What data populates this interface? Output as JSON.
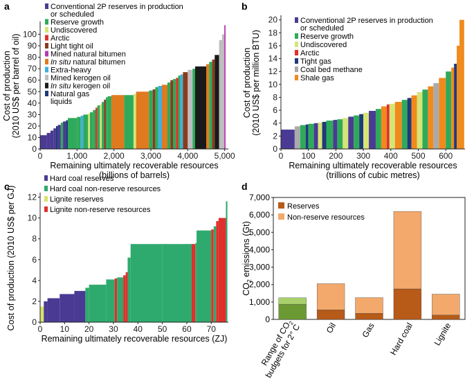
{
  "chart_data": [
    {
      "panel": "a",
      "type": "bar",
      "xlabel": "Remaining ultimately recoverable resources",
      "xlabel_units": "(billions of barrels)",
      "ylabel": "Cost of production",
      "ylabel_units": "(2010 US$ per barrel of oil)",
      "xlim": [
        0,
        5100
      ],
      "ylim": [
        0,
        110
      ],
      "xticks": [
        0,
        1000,
        2000,
        3000,
        4000,
        5000
      ],
      "xtick_labels": [
        "0",
        "1,000",
        "2,000",
        "3,000",
        "4,000",
        "5,000"
      ],
      "yticks": [
        0,
        10,
        20,
        30,
        40,
        50,
        60,
        70,
        80,
        90,
        100
      ],
      "legend": [
        {
          "label": "Conventional 2P reserves in production or scheduled",
          "lines": [
            "Conventional 2P reserves in production",
            "or scheduled"
          ],
          "color": "#4b3a93"
        },
        {
          "label": "Reserve growth",
          "lines": [
            "Reserve growth"
          ],
          "color": "#2faa5a"
        },
        {
          "label": "Undiscovered",
          "lines": [
            "Undiscovered"
          ],
          "color": "#d6e476"
        },
        {
          "label": "Arctic",
          "lines": [
            "Arctic"
          ],
          "color": "#e0302c"
        },
        {
          "label": "Light tight oil",
          "lines": [
            "Light tight oil"
          ],
          "color": "#8b3a1e"
        },
        {
          "label": "Mined natural bitumen",
          "lines": [
            "Mined natural bitumen"
          ],
          "color": "#b73ab0"
        },
        {
          "label": "In situ natural bitumen",
          "lines": [
            "In situ natural bitumen"
          ],
          "color": "#e07a1f",
          "italic": "In situ"
        },
        {
          "label": "Extra-heavy",
          "lines": [
            "Extra-heavy"
          ],
          "color": "#3fb0e0"
        },
        {
          "label": "Mined kerogen oil",
          "lines": [
            "Mined kerogen oil"
          ],
          "color": "#bdbdbd"
        },
        {
          "label": "In situ kerogen oil",
          "lines": [
            "In situ kerogen oil"
          ],
          "color": "#1a1a1a",
          "italic": "In situ"
        },
        {
          "label": "Natural gas liquids",
          "lines": [
            "Natural gas",
            "liquids"
          ],
          "color": "#1f3a7a"
        }
      ],
      "segments": [
        {
          "x0": 0,
          "x1": 180,
          "y": 12,
          "c": "#4b3a93"
        },
        {
          "x0": 180,
          "x1": 280,
          "y": 14,
          "c": "#4b3a93"
        },
        {
          "x0": 280,
          "x1": 360,
          "y": 16,
          "c": "#4b3a93"
        },
        {
          "x0": 360,
          "x1": 430,
          "y": 18,
          "c": "#4b3a93"
        },
        {
          "x0": 430,
          "x1": 480,
          "y": 20,
          "c": "#1f3a7a"
        },
        {
          "x0": 480,
          "x1": 560,
          "y": 21,
          "c": "#4b3a93"
        },
        {
          "x0": 560,
          "x1": 620,
          "y": 23,
          "c": "#2faa5a"
        },
        {
          "x0": 620,
          "x1": 700,
          "y": 24,
          "c": "#4b3a93"
        },
        {
          "x0": 700,
          "x1": 750,
          "y": 25,
          "c": "#1f3a7a"
        },
        {
          "x0": 750,
          "x1": 1000,
          "y": 27,
          "c": "#2faa5a"
        },
        {
          "x0": 1000,
          "x1": 1100,
          "y": 28,
          "c": "#2faa5a"
        },
        {
          "x0": 1100,
          "x1": 1170,
          "y": 29,
          "c": "#3fb0e0"
        },
        {
          "x0": 1170,
          "x1": 1300,
          "y": 30,
          "c": "#2faa5a"
        },
        {
          "x0": 1300,
          "x1": 1350,
          "y": 31,
          "c": "#d6e476"
        },
        {
          "x0": 1350,
          "x1": 1430,
          "y": 32,
          "c": "#2faa5a"
        },
        {
          "x0": 1430,
          "x1": 1500,
          "y": 34,
          "c": "#2faa5a"
        },
        {
          "x0": 1500,
          "x1": 1550,
          "y": 36,
          "c": "#e0302c"
        },
        {
          "x0": 1550,
          "x1": 1620,
          "y": 38,
          "c": "#2faa5a"
        },
        {
          "x0": 1620,
          "x1": 1670,
          "y": 39,
          "c": "#d6e476"
        },
        {
          "x0": 1670,
          "x1": 1730,
          "y": 41,
          "c": "#2faa5a"
        },
        {
          "x0": 1730,
          "x1": 1780,
          "y": 43,
          "c": "#8b3a1e"
        },
        {
          "x0": 1780,
          "x1": 1830,
          "y": 45,
          "c": "#2faa5a"
        },
        {
          "x0": 1830,
          "x1": 1930,
          "y": 46,
          "c": "#2faa5a"
        },
        {
          "x0": 1930,
          "x1": 2280,
          "y": 47,
          "c": "#e07a1f"
        },
        {
          "x0": 2280,
          "x1": 2530,
          "y": 47,
          "c": "#2faa5a"
        },
        {
          "x0": 2530,
          "x1": 2600,
          "y": 48,
          "c": "#d6e476"
        },
        {
          "x0": 2600,
          "x1": 2950,
          "y": 50,
          "c": "#e07a1f"
        },
        {
          "x0": 2950,
          "x1": 3050,
          "y": 51,
          "c": "#2faa5a"
        },
        {
          "x0": 3050,
          "x1": 3120,
          "y": 52,
          "c": "#8b3a1e"
        },
        {
          "x0": 3120,
          "x1": 3200,
          "y": 54,
          "c": "#2faa5a"
        },
        {
          "x0": 3200,
          "x1": 3300,
          "y": 55,
          "c": "#3fb0e0"
        },
        {
          "x0": 3300,
          "x1": 3450,
          "y": 56,
          "c": "#e07a1f"
        },
        {
          "x0": 3450,
          "x1": 3530,
          "y": 58,
          "c": "#2faa5a"
        },
        {
          "x0": 3530,
          "x1": 3600,
          "y": 60,
          "c": "#8b3a1e"
        },
        {
          "x0": 3600,
          "x1": 3680,
          "y": 61,
          "c": "#2faa5a"
        },
        {
          "x0": 3680,
          "x1": 3740,
          "y": 62,
          "c": "#e0302c"
        },
        {
          "x0": 3740,
          "x1": 3800,
          "y": 64,
          "c": "#2faa5a"
        },
        {
          "x0": 3800,
          "x1": 3870,
          "y": 65,
          "c": "#3fb0e0"
        },
        {
          "x0": 3870,
          "x1": 4000,
          "y": 67,
          "c": "#8b3a1e"
        },
        {
          "x0": 4000,
          "x1": 4130,
          "y": 69,
          "c": "#bdbdbd"
        },
        {
          "x0": 4130,
          "x1": 4200,
          "y": 70,
          "c": "#2faa5a"
        },
        {
          "x0": 4200,
          "x1": 4500,
          "y": 72,
          "c": "#1a1a1a"
        },
        {
          "x0": 4500,
          "x1": 4580,
          "y": 74,
          "c": "#e07a1f"
        },
        {
          "x0": 4580,
          "x1": 4660,
          "y": 76,
          "c": "#2faa5a"
        },
        {
          "x0": 4660,
          "x1": 4730,
          "y": 78,
          "c": "#8b3a1e"
        },
        {
          "x0": 4730,
          "x1": 4850,
          "y": 82,
          "c": "#1a1a1a"
        },
        {
          "x0": 4850,
          "x1": 4930,
          "y": 95,
          "c": "#bdbdbd"
        },
        {
          "x0": 4930,
          "x1": 4990,
          "y": 100,
          "c": "#bdbdbd"
        },
        {
          "x0": 4990,
          "x1": 5025,
          "y": 108,
          "c": "#b73ab0"
        }
      ]
    },
    {
      "panel": "b",
      "type": "bar",
      "xlabel": "Remaining ultimately recoverable resources",
      "xlabel_units": "(trillions of cubic metres)",
      "ylabel": "Cost of production",
      "ylabel_units": "(2010 US$ per million BTU)",
      "xlim": [
        0,
        670
      ],
      "ylim": [
        0,
        20.5
      ],
      "xticks": [
        0,
        100,
        200,
        300,
        400,
        500,
        600
      ],
      "xtick_labels": [
        "0",
        "100",
        "200",
        "300",
        "400",
        "500",
        "600"
      ],
      "yticks": [
        0,
        2,
        4,
        6,
        8,
        10,
        12,
        14,
        16,
        18,
        20
      ],
      "legend": [
        {
          "label": "Conventional 2P reserves in production or scheduled",
          "lines": [
            "Conventional 2P reserves in production",
            "or scheduled"
          ],
          "color": "#4b3a93"
        },
        {
          "label": "Reserve growth",
          "lines": [
            "Reserve growth"
          ],
          "color": "#2faa5a"
        },
        {
          "label": "Undiscovered",
          "lines": [
            "Undiscovered"
          ],
          "color": "#d6e476"
        },
        {
          "label": "Arctic",
          "lines": [
            "Arctic"
          ],
          "color": "#e0302c"
        },
        {
          "label": "Tight gas",
          "lines": [
            "Tight gas"
          ],
          "color": "#1f3a7a"
        },
        {
          "label": "Coal bed methane",
          "lines": [
            "Coal bed methane"
          ],
          "color": "#aaaaaa"
        },
        {
          "label": "Shale gas",
          "lines": [
            "Shale gas"
          ],
          "color": "#f08a1c"
        }
      ],
      "segments": [
        {
          "x0": 0,
          "x1": 50,
          "y": 3.0,
          "c": "#4b3a93"
        },
        {
          "x0": 50,
          "x1": 70,
          "y": 3.5,
          "c": "#aaaaaa"
        },
        {
          "x0": 70,
          "x1": 90,
          "y": 3.7,
          "c": "#2faa5a"
        },
        {
          "x0": 90,
          "x1": 100,
          "y": 3.8,
          "c": "#1f3a7a"
        },
        {
          "x0": 100,
          "x1": 120,
          "y": 3.9,
          "c": "#2faa5a"
        },
        {
          "x0": 120,
          "x1": 135,
          "y": 4.0,
          "c": "#4b3a93"
        },
        {
          "x0": 135,
          "x1": 150,
          "y": 4.1,
          "c": "#d6e476"
        },
        {
          "x0": 150,
          "x1": 165,
          "y": 4.2,
          "c": "#1f3a7a"
        },
        {
          "x0": 165,
          "x1": 190,
          "y": 4.4,
          "c": "#2faa5a"
        },
        {
          "x0": 190,
          "x1": 205,
          "y": 4.5,
          "c": "#4b3a93"
        },
        {
          "x0": 205,
          "x1": 225,
          "y": 4.6,
          "c": "#2faa5a"
        },
        {
          "x0": 225,
          "x1": 245,
          "y": 4.8,
          "c": "#d6e476"
        },
        {
          "x0": 245,
          "x1": 265,
          "y": 5.0,
          "c": "#4b3a93"
        },
        {
          "x0": 265,
          "x1": 285,
          "y": 5.2,
          "c": "#2faa5a"
        },
        {
          "x0": 285,
          "x1": 300,
          "y": 5.4,
          "c": "#1f3a7a"
        },
        {
          "x0": 300,
          "x1": 320,
          "y": 5.6,
          "c": "#d6e476"
        },
        {
          "x0": 320,
          "x1": 345,
          "y": 5.9,
          "c": "#4b3a93"
        },
        {
          "x0": 345,
          "x1": 365,
          "y": 6.2,
          "c": "#2faa5a"
        },
        {
          "x0": 365,
          "x1": 385,
          "y": 6.6,
          "c": "#f08a1c"
        },
        {
          "x0": 385,
          "x1": 395,
          "y": 6.9,
          "c": "#e0302c"
        },
        {
          "x0": 395,
          "x1": 415,
          "y": 7.0,
          "c": "#d6e476"
        },
        {
          "x0": 415,
          "x1": 440,
          "y": 7.3,
          "c": "#f08a1c"
        },
        {
          "x0": 440,
          "x1": 460,
          "y": 7.6,
          "c": "#2faa5a"
        },
        {
          "x0": 460,
          "x1": 475,
          "y": 7.9,
          "c": "#1f3a7a"
        },
        {
          "x0": 475,
          "x1": 495,
          "y": 8.3,
          "c": "#f08a1c"
        },
        {
          "x0": 495,
          "x1": 515,
          "y": 8.8,
          "c": "#d6e476"
        },
        {
          "x0": 515,
          "x1": 535,
          "y": 9.2,
          "c": "#2faa5a"
        },
        {
          "x0": 535,
          "x1": 555,
          "y": 9.7,
          "c": "#f08a1c"
        },
        {
          "x0": 555,
          "x1": 575,
          "y": 10.2,
          "c": "#aaaaaa"
        },
        {
          "x0": 575,
          "x1": 600,
          "y": 11.0,
          "c": "#f08a1c"
        },
        {
          "x0": 600,
          "x1": 620,
          "y": 12.0,
          "c": "#2faa5a"
        },
        {
          "x0": 620,
          "x1": 630,
          "y": 12.6,
          "c": "#f08a1c"
        },
        {
          "x0": 630,
          "x1": 640,
          "y": 13.2,
          "c": "#1f3a7a"
        },
        {
          "x0": 640,
          "x1": 650,
          "y": 16.0,
          "c": "#f08a1c"
        },
        {
          "x0": 650,
          "x1": 667,
          "y": 20.0,
          "c": "#f08a1c"
        }
      ]
    },
    {
      "panel": "c",
      "type": "bar",
      "xlabel": "Remaining ultimately recoverable resources (ZJ)",
      "ylabel": "Cost of production (2010 US$ per GJ)",
      "xlim": [
        0,
        77
      ],
      "ylim": [
        0,
        12.3
      ],
      "xticks": [
        0,
        10,
        20,
        30,
        40,
        50,
        60,
        70
      ],
      "xtick_labels": [
        "0",
        "10",
        "20",
        "30",
        "40",
        "50",
        "60",
        "70"
      ],
      "yticks": [
        0,
        2,
        4,
        6,
        8,
        10,
        12
      ],
      "legend": [
        {
          "label": "Hard coal reserves",
          "lines": [
            "Hard coal reserves"
          ],
          "color": "#4b3a93"
        },
        {
          "label": "Hard coal non-reserve resources",
          "lines": [
            "Hard coal non-reserve resources"
          ],
          "color": "#2faa6e"
        },
        {
          "label": "Lignite reserves",
          "lines": [
            "Lignite reserves"
          ],
          "color": "#d8e36a"
        },
        {
          "label": "Lignite non-reserve resources",
          "lines": [
            "Lignite non-reserve resources"
          ],
          "color": "#e0302c"
        }
      ],
      "segments": [
        {
          "x0": 0,
          "x1": 1.5,
          "y": 1.5,
          "c": "#d8e36a"
        },
        {
          "x0": 1.5,
          "x1": 3,
          "y": 2.0,
          "c": "#4b3a93"
        },
        {
          "x0": 3,
          "x1": 8,
          "y": 2.3,
          "c": "#4b3a93"
        },
        {
          "x0": 8,
          "x1": 14,
          "y": 2.7,
          "c": "#4b3a93"
        },
        {
          "x0": 14,
          "x1": 18.5,
          "y": 3.0,
          "c": "#4b3a93"
        },
        {
          "x0": 18.5,
          "x1": 20,
          "y": 3.3,
          "c": "#2faa6e"
        },
        {
          "x0": 20,
          "x1": 27,
          "y": 3.6,
          "c": "#2faa6e"
        },
        {
          "x0": 27,
          "x1": 30.5,
          "y": 4.1,
          "c": "#2faa6e"
        },
        {
          "x0": 30.5,
          "x1": 31.5,
          "y": 4.2,
          "c": "#e0302c"
        },
        {
          "x0": 31.5,
          "x1": 34,
          "y": 4.3,
          "c": "#2faa6e"
        },
        {
          "x0": 34,
          "x1": 35,
          "y": 4.5,
          "c": "#e0302c"
        },
        {
          "x0": 35,
          "x1": 35.8,
          "y": 4.8,
          "c": "#e0302c"
        },
        {
          "x0": 35.8,
          "x1": 37,
          "y": 6.2,
          "c": "#2faa6e"
        },
        {
          "x0": 37,
          "x1": 50,
          "y": 7.5,
          "c": "#2faa6e"
        },
        {
          "x0": 50,
          "x1": 62,
          "y": 7.5,
          "c": "#2faa6e"
        },
        {
          "x0": 62,
          "x1": 63.5,
          "y": 7.5,
          "c": "#e0302c"
        },
        {
          "x0": 63.5,
          "x1": 64,
          "y": 7.6,
          "c": "#2faa6e"
        },
        {
          "x0": 64,
          "x1": 70,
          "y": 8.8,
          "c": "#2faa6e"
        },
        {
          "x0": 70,
          "x1": 71,
          "y": 8.9,
          "c": "#e0302c"
        },
        {
          "x0": 71,
          "x1": 72,
          "y": 9.2,
          "c": "#2faa6e"
        },
        {
          "x0": 72,
          "x1": 73,
          "y": 9.7,
          "c": "#e0302c"
        },
        {
          "x0": 73,
          "x1": 76,
          "y": 10.0,
          "c": "#e0302c"
        },
        {
          "x0": 76,
          "x1": 76.6,
          "y": 11.6,
          "c": "#2faa6e"
        }
      ]
    },
    {
      "panel": "d",
      "type": "bar",
      "stacked": true,
      "ylabel_prefix": "CO",
      "ylabel_sub": "2",
      "ylabel_suffix": " emissions (Gt)",
      "ylim": [
        0,
        7000
      ],
      "yticks": [
        0,
        1000,
        2000,
        3000,
        4000,
        5000,
        6000,
        7000
      ],
      "ytick_labels": [
        "0",
        "1,000",
        "2,000",
        "3,000",
        "4,000",
        "5,000",
        "6,000",
        "7,000"
      ],
      "categories": [
        {
          "lines": [
            "Range of CO2",
            "budgets for 2°C"
          ],
          "line1_prefix": "Range of CO",
          "line1_sub": "2",
          "line2": "budgets for 2° C"
        },
        {
          "lines": [
            "Oil"
          ]
        },
        {
          "lines": [
            "Gas"
          ]
        },
        {
          "lines": [
            "Hard coal"
          ]
        },
        {
          "lines": [
            "Lignite"
          ]
        }
      ],
      "category_names": [
        "Range of CO2 budgets for 2° C",
        "Oil",
        "Gas",
        "Hard coal",
        "Lignite"
      ],
      "legend": [
        {
          "label": "Reserves",
          "color": "#b85a18"
        },
        {
          "label": "Non-reserve resources",
          "color": "#f3a96b"
        }
      ],
      "series": [
        {
          "name": "Reserves",
          "values": [
            870,
            550,
            350,
            1750,
            250
          ]
        },
        {
          "name": "Non-reserve resources",
          "values": [
            370,
            1500,
            900,
            4450,
            1200
          ]
        }
      ],
      "budget_colors": [
        "#6b9a33",
        "#a9d06a"
      ]
    }
  ],
  "panel_labels": [
    "a",
    "b",
    "c",
    "d"
  ]
}
